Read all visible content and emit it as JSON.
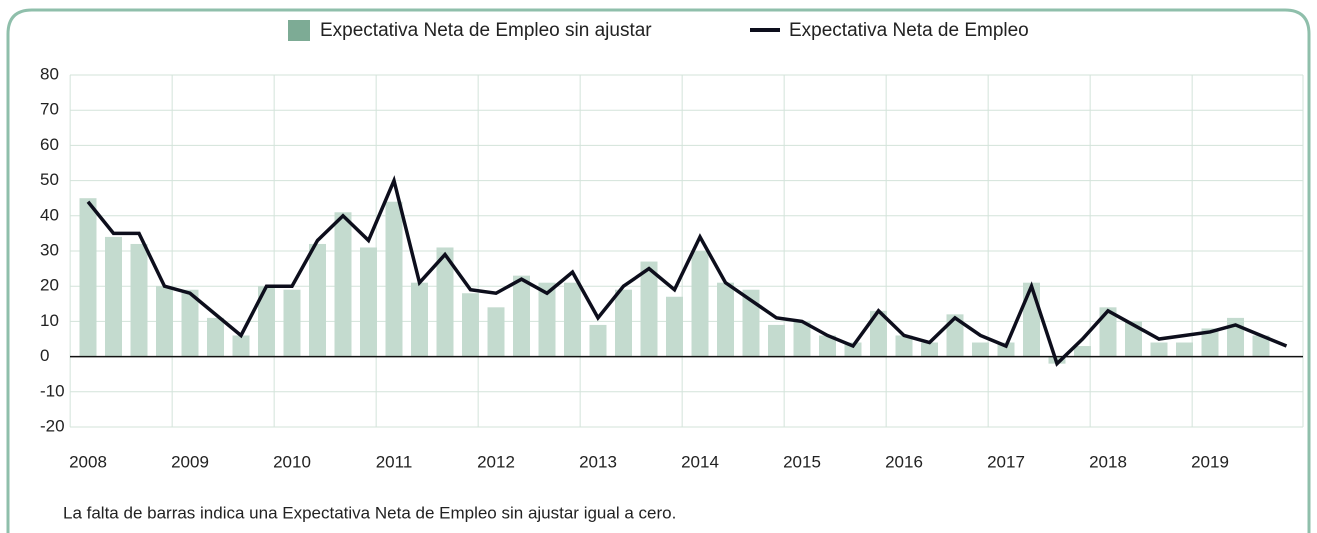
{
  "chart_data": {
    "type": "bar_line",
    "note": "La falta de barras indica una Expectativa Neta de Empleo sin ajustar igual a cero.",
    "categories": [
      "2008",
      null,
      null,
      null,
      "2009",
      null,
      null,
      null,
      "2010",
      null,
      null,
      null,
      "2011",
      null,
      null,
      null,
      "2012",
      null,
      null,
      null,
      "2013",
      null,
      null,
      null,
      "2014",
      null,
      null,
      null,
      "2015",
      null,
      null,
      null,
      "2016",
      null,
      null,
      null,
      "2017",
      null,
      null,
      null,
      "2018",
      null,
      null,
      null,
      "2019",
      null,
      null,
      null
    ],
    "series": [
      {
        "name": "Expectativa Neta de Empleo sin ajustar",
        "type": "bar",
        "color": "#c4dbcf",
        "legend_color": "#7dab95",
        "values": [
          45,
          34,
          32,
          20,
          19,
          11,
          6,
          20,
          19,
          32,
          41,
          31,
          44,
          21,
          31,
          18,
          14,
          23,
          21,
          21,
          9,
          19,
          27,
          17,
          30,
          21,
          19,
          9,
          10,
          6,
          4,
          13,
          6,
          4,
          12,
          4,
          4,
          21,
          -2,
          3,
          14,
          10,
          4,
          4,
          8,
          11,
          6,
          0
        ]
      },
      {
        "name": "Expectativa Neta de Empleo",
        "type": "line",
        "color": "#0d0e1c",
        "values": [
          44,
          35,
          35,
          20,
          18,
          12,
          6,
          20,
          20,
          33,
          40,
          33,
          50,
          21,
          29,
          19,
          18,
          22,
          18,
          24,
          11,
          20,
          25,
          19,
          34,
          21,
          16,
          11,
          10,
          6,
          3,
          13,
          6,
          4,
          11,
          6,
          3,
          20,
          -2,
          5,
          13,
          9,
          5,
          6,
          7,
          9,
          6,
          3
        ]
      }
    ],
    "ylim": [
      -20,
      80
    ],
    "yticks": [
      -20,
      -10,
      0,
      10,
      20,
      30,
      40,
      50,
      60,
      70,
      80
    ],
    "grid": true
  }
}
